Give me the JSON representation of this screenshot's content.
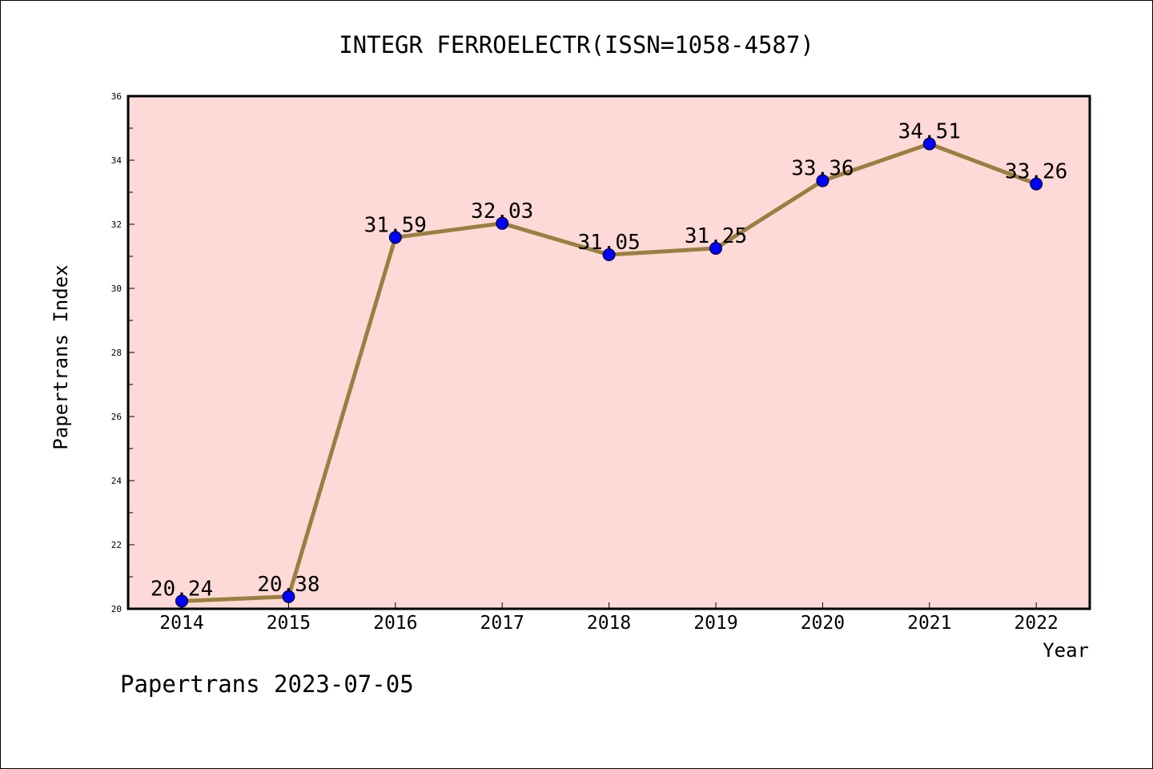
{
  "chart_data": {
    "type": "line",
    "title": "INTEGR FERROELECTR(ISSN=1058-4587)",
    "xlabel": "Year",
    "ylabel": "Papertrans Index",
    "categories": [
      "2014",
      "2015",
      "2016",
      "2017",
      "2018",
      "2019",
      "2020",
      "2021",
      "2022"
    ],
    "series": [
      {
        "values": [
          20.24,
          20.38,
          31.59,
          32.03,
          31.05,
          31.25,
          33.36,
          34.51,
          33.26
        ]
      }
    ],
    "data_labels": [
      "20.24",
      "20.38",
      "31.59",
      "32.03",
      "31.05",
      "31.25",
      "33.36",
      "34.51",
      "33.26"
    ],
    "ylim": [
      20,
      36
    ],
    "yticks": [
      "20",
      "22",
      "24",
      "26",
      "28",
      "30",
      "32",
      "34",
      "36"
    ],
    "grid": false,
    "colors": {
      "plot_background": "#FDDAD8",
      "line": "#9A8040",
      "marker": "#0000FF"
    }
  },
  "footer": {
    "watermark": "Papertrans 2023-07-05"
  }
}
